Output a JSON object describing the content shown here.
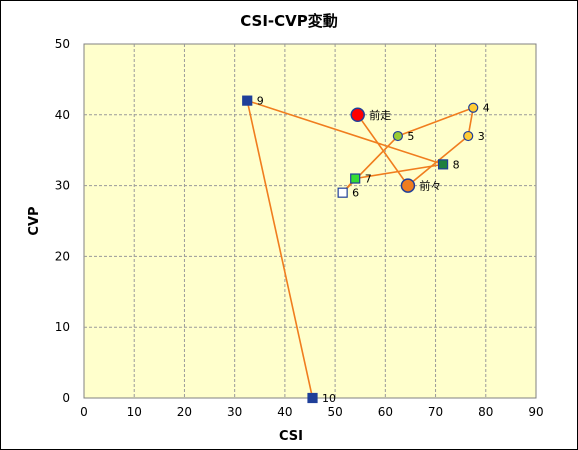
{
  "chart_data": {
    "type": "scatter",
    "title": "CSI-CVP変動",
    "xlabel": "CSI",
    "ylabel": "CVP",
    "xlim": [
      0,
      90
    ],
    "ylim": [
      0,
      50
    ],
    "xticks": [
      "0",
      "10",
      "20",
      "30",
      "40",
      "50",
      "60",
      "70",
      "80",
      "90"
    ],
    "yticks": [
      "0",
      "10",
      "20",
      "30",
      "40",
      "50"
    ],
    "grid": true,
    "line_color": "#f07d1e",
    "plot_background": "#ffffcc",
    "path_order": [
      "10",
      "9",
      "8",
      "7",
      "6",
      "5",
      "4",
      "3",
      "前々",
      "前走"
    ],
    "points": [
      {
        "label": "10",
        "x": 45.5,
        "y": 0,
        "marker": "square",
        "fill": "#1f3f99",
        "stroke": "#1f3f99"
      },
      {
        "label": "9",
        "x": 32.5,
        "y": 42,
        "marker": "square",
        "fill": "#1f3f99",
        "stroke": "#1f3f99"
      },
      {
        "label": "8",
        "x": 71.5,
        "y": 33,
        "marker": "square",
        "fill": "#1f7f3f",
        "stroke": "#1f3f99"
      },
      {
        "label": "7",
        "x": 54,
        "y": 31,
        "marker": "square",
        "fill": "#33dd33",
        "stroke": "#1f3f99"
      },
      {
        "label": "6",
        "x": 51.5,
        "y": 29,
        "marker": "square",
        "fill": "#ffffff",
        "stroke": "#1f3f99"
      },
      {
        "label": "5",
        "x": 62.5,
        "y": 37,
        "marker": "circle",
        "fill": "#99cc33",
        "stroke": "#1f3f99"
      },
      {
        "label": "4",
        "x": 77.5,
        "y": 41,
        "marker": "circle",
        "fill": "#ffcc33",
        "stroke": "#1f3f99"
      },
      {
        "label": "3",
        "x": 76.5,
        "y": 37,
        "marker": "circle",
        "fill": "#ffcc33",
        "stroke": "#1f3f99"
      },
      {
        "label": "前々",
        "x": 64.5,
        "y": 30,
        "marker": "circle-large",
        "fill": "#f07d1e",
        "stroke": "#1f3f99"
      },
      {
        "label": "前走",
        "x": 54.5,
        "y": 40,
        "marker": "circle-large",
        "fill": "#ff0000",
        "stroke": "#1f3f99"
      }
    ]
  }
}
